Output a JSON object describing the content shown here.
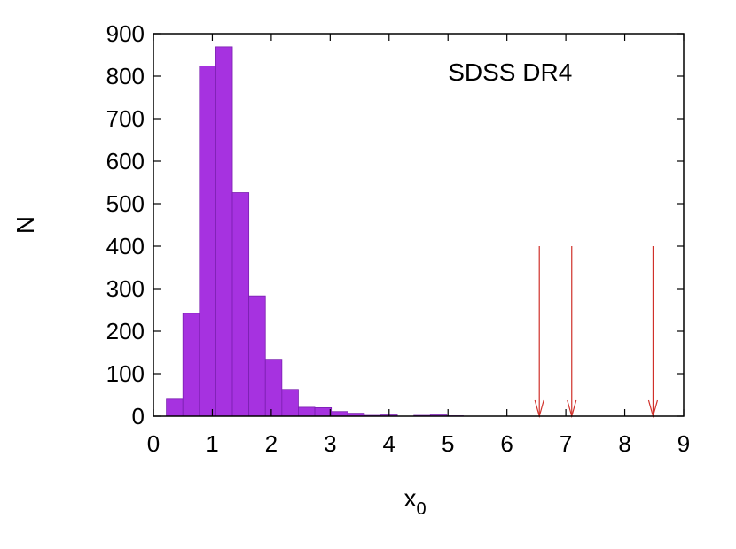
{
  "chart_data": {
    "type": "bar",
    "title": "",
    "xlabel": "x",
    "xlabel_sub": "0",
    "ylabel": "N",
    "xlim": [
      0,
      9
    ],
    "ylim": [
      0,
      900
    ],
    "xticks": [
      "0",
      "1",
      "2",
      "3",
      "4",
      "5",
      "6",
      "7",
      "8",
      "9"
    ],
    "yticks": [
      "0",
      "100",
      "200",
      "300",
      "400",
      "500",
      "600",
      "700",
      "800",
      "900"
    ],
    "grid": false,
    "bar_color": "#a632e0",
    "bar_edge_color": "#7a1fb0",
    "bin_width": 0.28,
    "bins": [
      {
        "x0": 0.22,
        "count": 40
      },
      {
        "x0": 0.5,
        "count": 242
      },
      {
        "x0": 0.78,
        "count": 824
      },
      {
        "x0": 1.06,
        "count": 869
      },
      {
        "x0": 1.34,
        "count": 526
      },
      {
        "x0": 1.62,
        "count": 283
      },
      {
        "x0": 1.9,
        "count": 134
      },
      {
        "x0": 2.18,
        "count": 63
      },
      {
        "x0": 2.46,
        "count": 21
      },
      {
        "x0": 2.74,
        "count": 20
      },
      {
        "x0": 3.02,
        "count": 11
      },
      {
        "x0": 3.3,
        "count": 7
      },
      {
        "x0": 3.58,
        "count": 2
      },
      {
        "x0": 3.86,
        "count": 3
      },
      {
        "x0": 4.14,
        "count": 0
      },
      {
        "x0": 4.42,
        "count": 2
      },
      {
        "x0": 4.7,
        "count": 3
      },
      {
        "x0": 4.98,
        "count": 1
      }
    ],
    "annotations": [
      {
        "text": "SDSS DR4",
        "x": 5.0,
        "y": 790
      }
    ],
    "arrow_color": "#d0302a",
    "arrows": [
      {
        "x": 6.55,
        "y_top": 400,
        "y_bottom": 0
      },
      {
        "x": 7.1,
        "y_top": 400,
        "y_bottom": 0
      },
      {
        "x": 8.48,
        "y_top": 400,
        "y_bottom": 0
      }
    ]
  }
}
